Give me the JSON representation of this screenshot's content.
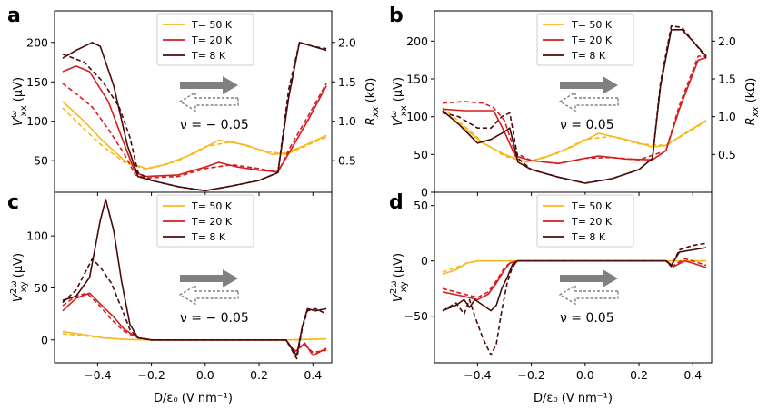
{
  "figure": {
    "shared_xlabel": "D/ε₀ (V nm⁻¹)",
    "colors": {
      "T50": "#f7b81c",
      "T20": "#d61d1d",
      "T8": "#4a0a0a",
      "arrow": "#808080"
    }
  },
  "chart_data": [
    {
      "id": "a",
      "type": "line",
      "panel_label": "a",
      "ylabel": "V^ω_xx (μV)",
      "ylabel_main": "V",
      "ylabel_sup": "ω",
      "ylabel_sub": "xx",
      "ylabel_unit": " (μV)",
      "ylabel_right": "R_xx (kΩ)",
      "ylabel_right_main": "R",
      "ylabel_right_sub": "xx",
      "ylabel_right_unit": " (kΩ)",
      "annotation": "ν = − 0.05",
      "xlim": [
        -0.56,
        0.47
      ],
      "ylim": [
        10,
        240
      ],
      "xticks": [
        -0.4,
        -0.2,
        0.0,
        0.2,
        0.4
      ],
      "show_xticklabels": false,
      "yticks": [
        50,
        100,
        150,
        200
      ],
      "ytick_labels": [
        "50",
        "100",
        "150",
        "200"
      ],
      "yticks_right_kohm": [
        0.5,
        1.0,
        1.5,
        2.0
      ],
      "ytick_right_labels": [
        "0.5",
        "1.0",
        "1.5",
        "2.0"
      ],
      "right_axis_scale": {
        "uV_per_kohm": 100,
        "offset_uV": 0
      },
      "legend": [
        "T= 50 K",
        "T= 20 K",
        "T= 8 K"
      ],
      "series": [
        {
          "name": "T= 50 K",
          "color_key": "T50",
          "style": "solid",
          "x": [
            -0.53,
            -0.45,
            -0.38,
            -0.3,
            -0.22,
            -0.15,
            -0.05,
            0.05,
            0.15,
            0.25,
            0.3,
            0.36,
            0.45
          ],
          "y": [
            125,
            100,
            75,
            50,
            40,
            45,
            58,
            76,
            70,
            58,
            60,
            68,
            82
          ]
        },
        {
          "name": "T= 50 K",
          "color_key": "T50",
          "style": "dashed",
          "x": [
            -0.53,
            -0.45,
            -0.38,
            -0.3,
            -0.22,
            -0.1,
            0.0,
            0.1,
            0.2,
            0.3,
            0.45
          ],
          "y": [
            117,
            90,
            68,
            48,
            39,
            50,
            68,
            74,
            64,
            58,
            80
          ]
        },
        {
          "name": "T= 20 K",
          "color_key": "T20",
          "style": "solid",
          "x": [
            -0.53,
            -0.48,
            -0.43,
            -0.36,
            -0.3,
            -0.26,
            -0.22,
            -0.1,
            0.0,
            0.05,
            0.12,
            0.2,
            0.27,
            0.32,
            0.38,
            0.45
          ],
          "y": [
            163,
            170,
            163,
            125,
            70,
            35,
            30,
            32,
            42,
            48,
            42,
            38,
            36,
            65,
            100,
            145
          ]
        },
        {
          "name": "T= 20 K",
          "color_key": "T20",
          "style": "dashed",
          "x": [
            -0.53,
            -0.48,
            -0.42,
            -0.36,
            -0.3,
            -0.26,
            -0.22,
            -0.1,
            0.0,
            0.1,
            0.2,
            0.27,
            0.32,
            0.38,
            0.45
          ],
          "y": [
            148,
            135,
            118,
            90,
            58,
            32,
            28,
            30,
            40,
            45,
            40,
            35,
            70,
            105,
            148
          ]
        },
        {
          "name": "T= 8 K",
          "color_key": "T8",
          "style": "solid",
          "x": [
            -0.53,
            -0.48,
            -0.42,
            -0.39,
            -0.34,
            -0.29,
            -0.25,
            -0.2,
            -0.1,
            0.0,
            0.1,
            0.2,
            0.27,
            0.31,
            0.35,
            0.4,
            0.45
          ],
          "y": [
            180,
            190,
            200,
            195,
            145,
            70,
            30,
            25,
            17,
            12,
            18,
            25,
            35,
            130,
            200,
            195,
            190
          ]
        },
        {
          "name": "T= 8 K",
          "color_key": "T8",
          "style": "dashed",
          "x": [
            -0.53,
            -0.45,
            -0.38,
            -0.32,
            -0.28,
            -0.25,
            -0.2,
            -0.1,
            0.0,
            0.1,
            0.2,
            0.27,
            0.31,
            0.35,
            0.4,
            0.45
          ],
          "y": [
            185,
            175,
            150,
            118,
            80,
            35,
            25,
            17,
            12,
            18,
            25,
            35,
            140,
            200,
            195,
            192
          ]
        }
      ]
    },
    {
      "id": "b",
      "type": "line",
      "panel_label": "b",
      "ylabel": "V^ω_xx (μV)",
      "ylabel_main": "V",
      "ylabel_sup": "ω",
      "ylabel_sub": "xx",
      "ylabel_unit": " (μV)",
      "ylabel_right": "R_xx (kΩ)",
      "ylabel_right_main": "R",
      "ylabel_right_sub": "xx",
      "ylabel_right_unit": " (kΩ)",
      "annotation": "ν = 0.05",
      "xlim": [
        -0.56,
        0.47
      ],
      "ylim": [
        0,
        240
      ],
      "xticks": [
        -0.4,
        -0.2,
        0.0,
        0.2,
        0.4
      ],
      "show_xticklabels": false,
      "yticks": [
        0,
        50,
        100,
        150,
        200
      ],
      "ytick_labels": [
        "0",
        "50",
        "100",
        "150",
        "200"
      ],
      "yticks_right_kohm": [
        0.5,
        1.0,
        1.5,
        2.0
      ],
      "ytick_right_labels": [
        "0.5",
        "1.0",
        "1.5",
        "2.0"
      ],
      "right_axis_scale": {
        "uV_per_kohm": 100,
        "offset_uV": 0
      },
      "legend": [
        "T= 50 K",
        "T= 20 K",
        "T= 8 K"
      ],
      "series": [
        {
          "name": "T= 50 K",
          "color_key": "T50",
          "style": "solid",
          "x": [
            -0.53,
            -0.45,
            -0.38,
            -0.3,
            -0.22,
            -0.15,
            -0.05,
            0.05,
            0.15,
            0.25,
            0.3,
            0.38,
            0.45
          ],
          "y": [
            108,
            85,
            65,
            50,
            40,
            46,
            60,
            78,
            70,
            60,
            62,
            80,
            95
          ]
        },
        {
          "name": "T= 50 K",
          "color_key": "T50",
          "style": "dashed",
          "x": [
            -0.53,
            -0.45,
            -0.38,
            -0.3,
            -0.22,
            -0.1,
            0.0,
            0.1,
            0.2,
            0.3,
            0.45
          ],
          "y": [
            112,
            88,
            66,
            48,
            40,
            52,
            70,
            74,
            64,
            62,
            94
          ]
        },
        {
          "name": "T= 20 K",
          "color_key": "T20",
          "style": "solid",
          "x": [
            -0.53,
            -0.45,
            -0.38,
            -0.34,
            -0.3,
            -0.26,
            -0.2,
            -0.1,
            0.0,
            0.05,
            0.15,
            0.25,
            0.3,
            0.35,
            0.42,
            0.45
          ],
          "y": [
            110,
            108,
            108,
            108,
            80,
            48,
            42,
            38,
            45,
            48,
            44,
            43,
            55,
            110,
            175,
            178
          ]
        },
        {
          "name": "T= 20 K",
          "color_key": "T20",
          "style": "dashed",
          "x": [
            -0.53,
            -0.45,
            -0.38,
            -0.34,
            -0.3,
            -0.26,
            -0.2,
            -0.1,
            0.0,
            0.1,
            0.2,
            0.3,
            0.35,
            0.42,
            0.45
          ],
          "y": [
            118,
            120,
            118,
            112,
            95,
            52,
            42,
            38,
            45,
            46,
            43,
            55,
            115,
            180,
            180
          ]
        },
        {
          "name": "T= 8 K",
          "color_key": "T8",
          "style": "solid",
          "x": [
            -0.53,
            -0.47,
            -0.4,
            -0.35,
            -0.3,
            -0.28,
            -0.25,
            -0.2,
            -0.1,
            0.0,
            0.1,
            0.2,
            0.25,
            0.28,
            0.32,
            0.36,
            0.4,
            0.45
          ],
          "y": [
            108,
            90,
            65,
            70,
            80,
            85,
            40,
            30,
            20,
            12,
            18,
            30,
            45,
            140,
            215,
            215,
            200,
            180
          ]
        },
        {
          "name": "T= 8 K",
          "color_key": "T8",
          "style": "dashed",
          "x": [
            -0.53,
            -0.47,
            -0.4,
            -0.35,
            -0.31,
            -0.28,
            -0.25,
            -0.2,
            -0.1,
            0.0,
            0.1,
            0.2,
            0.25,
            0.28,
            0.32,
            0.36,
            0.4,
            0.45
          ],
          "y": [
            105,
            100,
            85,
            85,
            100,
            105,
            45,
            30,
            20,
            12,
            18,
            30,
            45,
            145,
            220,
            218,
            200,
            178
          ]
        }
      ]
    },
    {
      "id": "c",
      "type": "line",
      "panel_label": "c",
      "ylabel": "V^2ω_xy (μV)",
      "ylabel_main": "V",
      "ylabel_sup": "2ω",
      "ylabel_sub": "xy",
      "ylabel_unit": " (μV)",
      "annotation": "ν = − 0.05",
      "xlim": [
        -0.56,
        0.47
      ],
      "ylim": [
        -22,
        142
      ],
      "xticks": [
        -0.4,
        -0.2,
        0.0,
        0.2,
        0.4
      ],
      "show_xticklabels": true,
      "xtick_labels": [
        "−0.4",
        "−0.2",
        "0.0",
        "0.2",
        "0.4"
      ],
      "yticks": [
        0,
        50,
        100
      ],
      "ytick_labels": [
        "0",
        "50",
        "100"
      ],
      "legend": [
        "T= 50 K",
        "T= 20 K",
        "T= 8 K"
      ],
      "series": [
        {
          "name": "T= 50 K",
          "color_key": "T50",
          "style": "solid",
          "x": [
            -0.53,
            -0.45,
            -0.38,
            -0.3,
            -0.2,
            0.0,
            0.3,
            0.45
          ],
          "y": [
            8,
            5,
            2,
            0.5,
            0,
            0,
            0,
            1
          ]
        },
        {
          "name": "T= 50 K",
          "color_key": "T50",
          "style": "dashed",
          "x": [
            -0.53,
            -0.45,
            -0.38,
            -0.3,
            -0.2,
            0.0,
            0.3,
            0.45
          ],
          "y": [
            6,
            4,
            2,
            0.5,
            0,
            0,
            0,
            1
          ]
        },
        {
          "name": "T= 20 K",
          "color_key": "T20",
          "style": "solid",
          "x": [
            -0.53,
            -0.48,
            -0.43,
            -0.38,
            -0.34,
            -0.3,
            -0.25,
            -0.2,
            0.0,
            0.3,
            0.33,
            0.37,
            0.4,
            0.45
          ],
          "y": [
            28,
            40,
            45,
            32,
            22,
            10,
            2,
            0,
            0,
            0,
            -12,
            -3,
            -15,
            -8
          ]
        },
        {
          "name": "T= 20 K",
          "color_key": "T20",
          "style": "dashed",
          "x": [
            -0.53,
            -0.48,
            -0.44,
            -0.4,
            -0.35,
            -0.3,
            -0.25,
            -0.2,
            0.0,
            0.3,
            0.33,
            0.37,
            0.4,
            0.45
          ],
          "y": [
            33,
            42,
            45,
            35,
            20,
            8,
            2,
            0,
            0,
            0,
            -10,
            -5,
            -12,
            -10
          ]
        },
        {
          "name": "T= 8 K",
          "color_key": "T8",
          "style": "solid",
          "x": [
            -0.53,
            -0.48,
            -0.43,
            -0.39,
            -0.37,
            -0.34,
            -0.31,
            -0.28,
            -0.25,
            -0.2,
            0.0,
            0.3,
            0.34,
            0.36,
            0.38,
            0.41,
            0.45
          ],
          "y": [
            38,
            42,
            60,
            115,
            135,
            105,
            55,
            15,
            2,
            0,
            0,
            0,
            -15,
            12,
            30,
            28,
            30
          ]
        },
        {
          "name": "T= 8 K",
          "color_key": "T8",
          "style": "dashed",
          "x": [
            -0.53,
            -0.48,
            -0.42,
            -0.39,
            -0.35,
            -0.31,
            -0.28,
            -0.25,
            -0.2,
            0.0,
            0.3,
            0.34,
            0.36,
            0.38,
            0.41,
            0.45
          ],
          "y": [
            36,
            48,
            78,
            70,
            55,
            30,
            10,
            2,
            0,
            0,
            0,
            -18,
            10,
            28,
            30,
            25
          ]
        }
      ]
    },
    {
      "id": "d",
      "type": "line",
      "panel_label": "d",
      "ylabel": "V^2ω_xy (μV)",
      "ylabel_main": "V",
      "ylabel_sup": "2ω",
      "ylabel_sub": "xy",
      "ylabel_unit": " (μV)",
      "annotation": "ν = 0.05",
      "xlim": [
        -0.56,
        0.47
      ],
      "ylim": [
        -92,
        62
      ],
      "xticks": [
        -0.4,
        -0.2,
        0.0,
        0.2,
        0.4
      ],
      "show_xticklabels": true,
      "xtick_labels": [
        "−0.4",
        "−0.2",
        "0.0",
        "0.2",
        "0.4"
      ],
      "yticks": [
        -50,
        0,
        50
      ],
      "ytick_labels": [
        "−50",
        "0",
        "50"
      ],
      "legend": [
        "T= 50 K",
        "T= 20 K",
        "T= 8 K"
      ],
      "series": [
        {
          "name": "T= 50 K",
          "color_key": "T50",
          "style": "solid",
          "x": [
            -0.53,
            -0.48,
            -0.44,
            -0.4,
            -0.35,
            -0.2,
            0.0,
            0.3,
            0.45
          ],
          "y": [
            -12,
            -8,
            -2,
            0,
            0,
            0,
            0,
            0,
            0
          ]
        },
        {
          "name": "T= 50 K",
          "color_key": "T50",
          "style": "dashed",
          "x": [
            -0.53,
            -0.48,
            -0.44,
            -0.4,
            -0.35,
            -0.2,
            0.0,
            0.3,
            0.45
          ],
          "y": [
            -10,
            -6,
            -2,
            0,
            0,
            0,
            0,
            0,
            0
          ]
        },
        {
          "name": "T= 20 K",
          "color_key": "T20",
          "style": "solid",
          "x": [
            -0.53,
            -0.45,
            -0.4,
            -0.36,
            -0.33,
            -0.3,
            -0.28,
            -0.25,
            -0.2,
            0.0,
            0.3,
            0.33,
            0.37,
            0.4,
            0.45
          ],
          "y": [
            -28,
            -32,
            -35,
            -30,
            -20,
            -8,
            -2,
            0,
            0,
            0,
            0,
            -5,
            0,
            -2,
            -6
          ]
        },
        {
          "name": "T= 20 K",
          "color_key": "T20",
          "style": "dashed",
          "x": [
            -0.53,
            -0.45,
            -0.4,
            -0.36,
            -0.33,
            -0.3,
            -0.28,
            -0.25,
            -0.2,
            0.0,
            0.3,
            0.33,
            0.37,
            0.4,
            0.45
          ],
          "y": [
            -25,
            -30,
            -33,
            -28,
            -18,
            -6,
            -2,
            0,
            0,
            0,
            0,
            -4,
            2,
            0,
            -4
          ]
        },
        {
          "name": "T= 8 K",
          "color_key": "T8",
          "style": "solid",
          "x": [
            -0.53,
            -0.48,
            -0.45,
            -0.43,
            -0.41,
            -0.38,
            -0.35,
            -0.33,
            -0.31,
            -0.29,
            -0.27,
            -0.25,
            -0.2,
            0.0,
            0.3,
            0.32,
            0.35,
            0.4,
            0.45
          ],
          "y": [
            -45,
            -40,
            -35,
            -42,
            -35,
            -40,
            -45,
            -40,
            -25,
            -15,
            -3,
            0,
            0,
            0,
            0,
            -4,
            8,
            10,
            12
          ]
        },
        {
          "name": "T= 8 K",
          "color_key": "T8",
          "style": "dashed",
          "x": [
            -0.53,
            -0.48,
            -0.45,
            -0.43,
            -0.41,
            -0.38,
            -0.35,
            -0.33,
            -0.31,
            -0.29,
            -0.27,
            -0.25,
            -0.2,
            0.0,
            0.3,
            0.32,
            0.35,
            0.4,
            0.45
          ],
          "y": [
            -45,
            -38,
            -48,
            -35,
            -50,
            -70,
            -85,
            -75,
            -45,
            -20,
            -5,
            0,
            0,
            0,
            0,
            -5,
            10,
            14,
            16
          ]
        }
      ]
    }
  ]
}
